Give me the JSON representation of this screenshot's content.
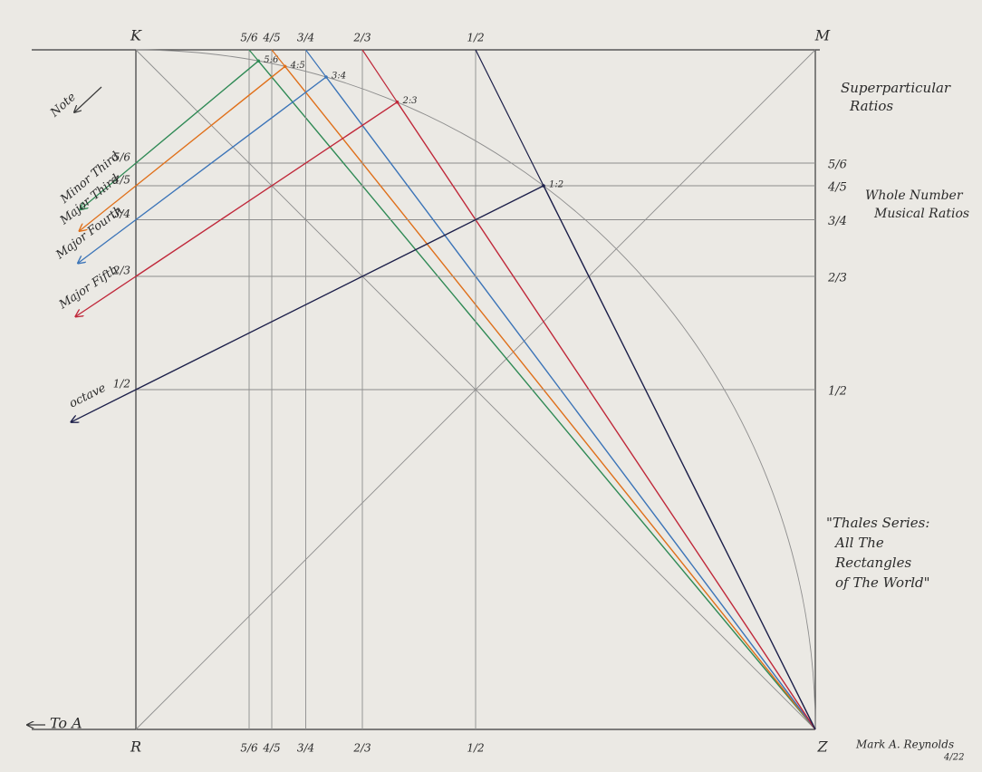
{
  "corners": [
    "K",
    "M",
    "R",
    "Z"
  ],
  "ratios": [
    {
      "fraction": "5/6",
      "point": "5:6",
      "interval": "Minor Third",
      "color": "#2f8a55"
    },
    {
      "fraction": "4/5",
      "point": "4:5",
      "interval": "Major Third",
      "color": "#e0701a"
    },
    {
      "fraction": "3/4",
      "point": "3:4",
      "interval": "Major Fourth",
      "color": "#3b74b8"
    },
    {
      "fraction": "2/3",
      "point": "2:3",
      "interval": "Major Fifth",
      "color": "#c0283a"
    },
    {
      "fraction": "1/2",
      "point": "1:2",
      "interval": "octave",
      "color": "#1c1f4a"
    }
  ],
  "notes": {
    "note": "Note",
    "to_a": "To A"
  },
  "captions": {
    "superparticular": [
      "Superparticular",
      "Ratios"
    ],
    "whole_number": [
      "Whole Number",
      "Musical Ratios"
    ],
    "thales": [
      "\"Thales Series:",
      "All The",
      "Rectangles",
      "of The World\""
    ],
    "signature": "Mark A. Reynolds",
    "date": "4/22"
  }
}
